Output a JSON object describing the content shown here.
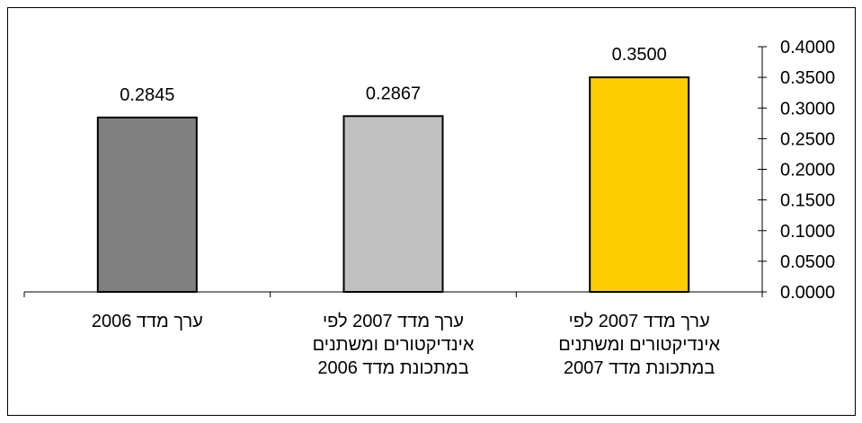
{
  "chart_data": {
    "type": "bar",
    "categories": [
      "ערך מדד 2006",
      "ערך מדד 2007 לפי\nאינדיקטורים ומשתנים\nבמתכונת מדד 2006",
      "ערך מדד 2007 לפי\nאינדיקטורים ומשתנים\nבמתכונת מדד 2007"
    ],
    "values": [
      0.2845,
      0.2867,
      0.35
    ],
    "value_labels": [
      "0.2845",
      "0.2867",
      "0.3500"
    ],
    "bar_colors": [
      "#808080",
      "#c0c0c0",
      "#ffcc00"
    ],
    "ylim": [
      0,
      0.4
    ],
    "yticks": [
      "0.0000",
      "0.0500",
      "0.1000",
      "0.1500",
      "0.2000",
      "0.2500",
      "0.3000",
      "0.3500",
      "0.4000"
    ],
    "y_axis_side": "right",
    "grid": false,
    "legend": "none",
    "title": "",
    "xlabel": "",
    "ylabel": ""
  }
}
